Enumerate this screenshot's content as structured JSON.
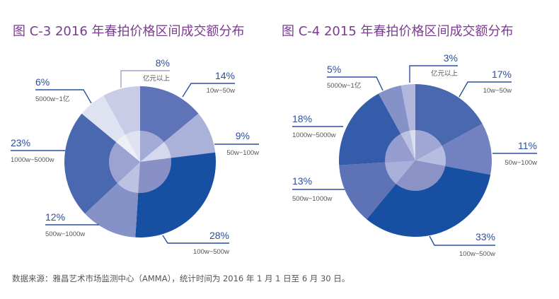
{
  "footer": "数据来源：雅昌艺术市场监测中心（AMMA），统计时间为 2016 年 1 月 1 日至 6 月 30 日。",
  "chart_data": [
    {
      "type": "pie",
      "title": "图 C-3  2016 年春拍价格区间成交额分布",
      "categories": [
        "10w−50w",
        "50w−100w",
        "100w−500w",
        "500w−1000w",
        "1000w−5000w",
        "5000w−1亿",
        "亿元以上"
      ],
      "values": [
        14,
        9,
        28,
        12,
        23,
        6,
        8
      ],
      "labels": [
        "14%",
        "9%",
        "28%",
        "12%",
        "23%",
        "6%",
        "8%"
      ],
      "outer_colors": [
        "#5f74b8",
        "#aab2d9",
        "#1750a3",
        "#8592c8",
        "#4a68b0",
        "#dfe2f1",
        "#c8cce6"
      ],
      "inner_colors": [
        "#a3aad6",
        "#d6d9ee",
        "#8890c5",
        "#bdc2e2",
        "#9ca3d2",
        "#eef0f8",
        "#dfe2f1"
      ]
    },
    {
      "type": "pie",
      "title": "图 C-4  2015 年春拍价格区间成交额分布",
      "categories": [
        "10w−50w",
        "50w−100w",
        "100w−500w",
        "500w−1000w",
        "1000w−5000w",
        "5000w−1亿",
        "亿元以上"
      ],
      "values": [
        17,
        11,
        33,
        13,
        18,
        5,
        3
      ],
      "labels": [
        "17%",
        "11%",
        "33%",
        "13%",
        "18%",
        "5%",
        "3%"
      ],
      "outer_colors": [
        "#4a68b0",
        "#7282c0",
        "#1750a3",
        "#5e72b6",
        "#355cab",
        "#8592c8",
        "#b0b6dc"
      ],
      "inner_colors": [
        "#a0a7d4",
        "#b7bde0",
        "#8a92c6",
        "#a9b0da",
        "#959ccf",
        "#bdc2e2",
        "#dadef0"
      ]
    }
  ]
}
